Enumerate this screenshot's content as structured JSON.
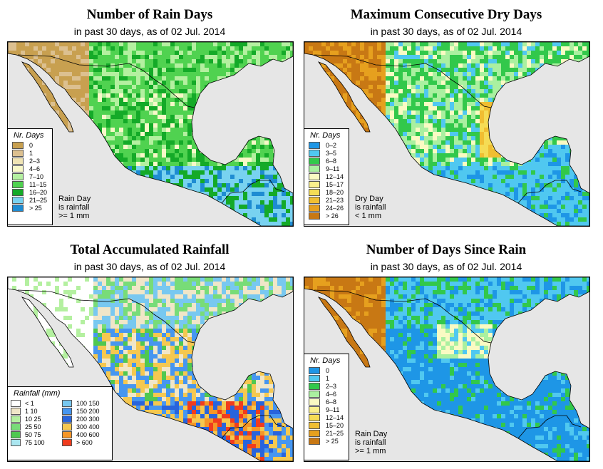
{
  "colors": {
    "ocean": "#e6e6e6",
    "border": "#000000"
  },
  "panels": {
    "rain_days": {
      "title": "Number of Rain Days",
      "subtitle": "in past 30 days, as of  02 Jul. 2014",
      "legend_title": "Nr. Days",
      "legend": [
        {
          "label": "0",
          "color": "#c8a050"
        },
        {
          "label": "1",
          "color": "#dcc090"
        },
        {
          "label": "2–3",
          "color": "#f0e4b4"
        },
        {
          "label": "4–6",
          "color": "#f8f8c8"
        },
        {
          "label": "7–10",
          "color": "#b4f0a0"
        },
        {
          "label": "11–15",
          "color": "#50d250"
        },
        {
          "label": "16–20",
          "color": "#14aa28"
        },
        {
          "label": "21–25",
          "color": "#78d2f0"
        },
        {
          "label": "> 25",
          "color": "#1e8cd2"
        }
      ],
      "note": [
        "Rain Day",
        "is rainfall",
        ">= 1 mm"
      ]
    },
    "dry_days": {
      "title": "Maximum Consecutive Dry Days",
      "subtitle": "in past 30 days, as of  02 Jul. 2014",
      "legend_title": "Nr. Days",
      "legend": [
        {
          "label": "0–2",
          "color": "#1e96e6"
        },
        {
          "label": "3–5",
          "color": "#50c8f0"
        },
        {
          "label": "6–8",
          "color": "#32c84b"
        },
        {
          "label": "9–11",
          "color": "#aaf0a0"
        },
        {
          "label": "12–14",
          "color": "#fafac3"
        },
        {
          "label": "15–17",
          "color": "#faf08c"
        },
        {
          "label": "18–20",
          "color": "#f5dc55"
        },
        {
          "label": "21–23",
          "color": "#f0be32"
        },
        {
          "label": "24–26",
          "color": "#e6a01e"
        },
        {
          "label": "> 26",
          "color": "#c87814"
        }
      ],
      "note": [
        "Dry Day",
        "is rainfall",
        "< 1 mm"
      ]
    },
    "total_rain": {
      "title": "Total Accumulated Rainfall",
      "subtitle": "in past 30 days, as of  02 Jul. 2014",
      "legend_title": "Rainfall (mm)",
      "legend": [
        {
          "label": "<  1",
          "color": "#ffffff"
        },
        {
          "label": "100  150",
          "color": "#78c8f0"
        },
        {
          "label": "1   10",
          "color": "#f0e6c8"
        },
        {
          "label": "150  200",
          "color": "#4696f0"
        },
        {
          "label": "10   25",
          "color": "#b4f0a0"
        },
        {
          "label": "200  300",
          "color": "#2864dc"
        },
        {
          "label": "25   50",
          "color": "#78dc78"
        },
        {
          "label": "300  400",
          "color": "#f5c850"
        },
        {
          "label": "50   75",
          "color": "#50c850"
        },
        {
          "label": "400  600",
          "color": "#f59628"
        },
        {
          "label": "75  100",
          "color": "#aae6f0"
        },
        {
          "label": "> 600",
          "color": "#f03c1e"
        }
      ]
    },
    "days_since": {
      "title": "Number of Days Since Rain",
      "subtitle": "in past 30 days, as of  02 Jul. 2014",
      "legend_title": "Nr. Days",
      "legend": [
        {
          "label": "0",
          "color": "#1e96e6"
        },
        {
          "label": "1",
          "color": "#50c8f0"
        },
        {
          "label": "2–3",
          "color": "#32c84b"
        },
        {
          "label": "4–6",
          "color": "#aaf0a0"
        },
        {
          "label": "6–8",
          "color": "#fafac3"
        },
        {
          "label": "9–11",
          "color": "#faf08c"
        },
        {
          "label": "12–14",
          "color": "#f5dc55"
        },
        {
          "label": "15–20",
          "color": "#f0be32"
        },
        {
          "label": "21–25",
          "color": "#e6a01e"
        },
        {
          "label": "> 25",
          "color": "#c87814"
        }
      ],
      "note": [
        "Rain Day",
        "is rainfall",
        ">= 1 mm"
      ]
    }
  }
}
